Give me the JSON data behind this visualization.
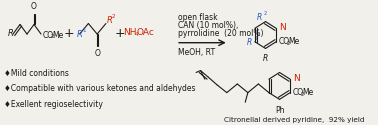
{
  "background_color": "#f2f0eb",
  "bullet_points": [
    "♦Mild conditions",
    "♦Compatible with various ketones and aldehydes",
    "♦Exellent regioselectivity"
  ],
  "bullet_fontsize": 5.5,
  "bullet_color": "#1a1a1a",
  "conditions_lines": [
    "open flask",
    "CAN (10 mol%),",
    "pyrrolidine  (20 mol%)",
    "MeOH, RT"
  ],
  "conditions_fontsize": 5.5,
  "conditions_color": "#1a1a1a",
  "citation_text": "Citronellal derived pyridine,  92% yield",
  "citation_fontsize": 5.2,
  "citation_color": "#1a1a1a",
  "red_color": "#cc2200",
  "blue_color": "#2255cc",
  "black_color": "#1a1a1a",
  "lw": 0.8
}
